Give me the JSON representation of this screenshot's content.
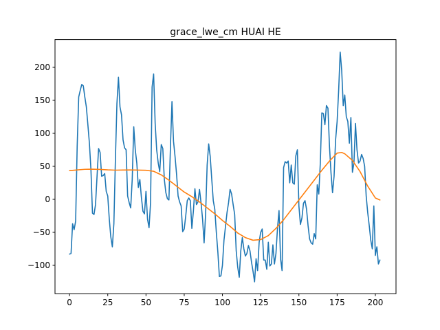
{
  "chart_data": {
    "type": "line",
    "title": "grace_lwe_cm HUAI HE",
    "xlabel": "",
    "ylabel": "",
    "xlim": [
      -9.5,
      213.5
    ],
    "ylim": [
      -143,
      242
    ],
    "x_ticks": [
      0,
      25,
      50,
      75,
      100,
      125,
      150,
      175,
      200
    ],
    "y_ticks": [
      -100,
      -50,
      0,
      50,
      100,
      150,
      200
    ],
    "grid": false,
    "legend": "none",
    "colors": {
      "series_0": "#1f77b4",
      "series_1": "#ff7f0e"
    },
    "series": [
      {
        "points": [
          [
            0,
            -83
          ],
          [
            1,
            -82
          ],
          [
            2,
            -37
          ],
          [
            3,
            -46
          ],
          [
            4,
            -33
          ],
          [
            5,
            80
          ],
          [
            6,
            155
          ],
          [
            7,
            165
          ],
          [
            8,
            174
          ],
          [
            9,
            172
          ],
          [
            10,
            155
          ],
          [
            11,
            140
          ],
          [
            12,
            113
          ],
          [
            13,
            85
          ],
          [
            14,
            45
          ],
          [
            15,
            -21
          ],
          [
            16,
            -23
          ],
          [
            17,
            -8
          ],
          [
            18,
            35
          ],
          [
            19,
            77
          ],
          [
            20,
            71
          ],
          [
            21,
            35
          ],
          [
            22,
            36
          ],
          [
            23,
            39
          ],
          [
            24,
            12
          ],
          [
            25,
            5
          ],
          [
            26,
            -30
          ],
          [
            27,
            -57
          ],
          [
            28,
            -72
          ],
          [
            29,
            -37
          ],
          [
            30,
            60
          ],
          [
            31,
            145
          ],
          [
            32,
            185
          ],
          [
            33,
            140
          ],
          [
            34,
            128
          ],
          [
            35,
            90
          ],
          [
            36,
            78
          ],
          [
            37,
            75
          ],
          [
            38,
            5
          ],
          [
            39,
            -5
          ],
          [
            40,
            -13
          ],
          [
            41,
            30
          ],
          [
            42,
            110
          ],
          [
            43,
            75
          ],
          [
            44,
            55
          ],
          [
            45,
            18
          ],
          [
            46,
            30
          ],
          [
            47,
            3
          ],
          [
            48,
            -18
          ],
          [
            49,
            -22
          ],
          [
            50,
            12
          ],
          [
            51,
            -30
          ],
          [
            52,
            -43
          ],
          [
            53,
            -5
          ],
          [
            54,
            170
          ],
          [
            55,
            190
          ],
          [
            56,
            115
          ],
          [
            57,
            75
          ],
          [
            58,
            55
          ],
          [
            59,
            42
          ],
          [
            60,
            83
          ],
          [
            61,
            77
          ],
          [
            62,
            30
          ],
          [
            63,
            10
          ],
          [
            64,
            1
          ],
          [
            65,
            -1
          ],
          [
            66,
            80
          ],
          [
            67,
            148
          ],
          [
            68,
            88
          ],
          [
            69,
            65
          ],
          [
            70,
            38
          ],
          [
            71,
            5
          ],
          [
            72,
            -4
          ],
          [
            73,
            -10
          ],
          [
            74,
            -49
          ],
          [
            75,
            -45
          ],
          [
            76,
            -25
          ],
          [
            77,
            -2
          ],
          [
            78,
            2
          ],
          [
            79,
            -2
          ],
          [
            80,
            -44
          ],
          [
            81,
            -18
          ],
          [
            82,
            16
          ],
          [
            83,
            -8
          ],
          [
            84,
            -4
          ],
          [
            85,
            15
          ],
          [
            86,
            -5
          ],
          [
            87,
            -30
          ],
          [
            88,
            -66
          ],
          [
            89,
            -22
          ],
          [
            90,
            52
          ],
          [
            91,
            84
          ],
          [
            92,
            65
          ],
          [
            93,
            31
          ],
          [
            94,
            -2
          ],
          [
            95,
            -15
          ],
          [
            96,
            -50
          ],
          [
            97,
            -80
          ],
          [
            98,
            -117
          ],
          [
            99,
            -116
          ],
          [
            100,
            -100
          ],
          [
            101,
            -62
          ],
          [
            102,
            -41
          ],
          [
            103,
            -20
          ],
          [
            104,
            -5
          ],
          [
            105,
            15
          ],
          [
            106,
            8
          ],
          [
            107,
            -8
          ],
          [
            108,
            -23
          ],
          [
            109,
            -78
          ],
          [
            110,
            -103
          ],
          [
            111,
            -118
          ],
          [
            112,
            -78
          ],
          [
            113,
            -58
          ],
          [
            114,
            -75
          ],
          [
            115,
            -86
          ],
          [
            116,
            -82
          ],
          [
            117,
            -70
          ],
          [
            118,
            -78
          ],
          [
            119,
            -95
          ],
          [
            120,
            -109
          ],
          [
            121,
            -125
          ],
          [
            122,
            -90
          ],
          [
            123,
            -108
          ],
          [
            124,
            -65
          ],
          [
            125,
            -50
          ],
          [
            126,
            -45
          ],
          [
            127,
            -92
          ],
          [
            128,
            -92
          ],
          [
            129,
            -106
          ],
          [
            130,
            -65
          ],
          [
            131,
            -101
          ],
          [
            132,
            -98
          ],
          [
            133,
            -69
          ],
          [
            134,
            -98
          ],
          [
            135,
            -82
          ],
          [
            136,
            -44
          ],
          [
            137,
            -17
          ],
          [
            138,
            -90
          ],
          [
            139,
            -108
          ],
          [
            140,
            48
          ],
          [
            141,
            57
          ],
          [
            142,
            55
          ],
          [
            143,
            58
          ],
          [
            144,
            25
          ],
          [
            145,
            52
          ],
          [
            146,
            25
          ],
          [
            147,
            23
          ],
          [
            148,
            66
          ],
          [
            149,
            75
          ],
          [
            150,
            -10
          ],
          [
            151,
            -38
          ],
          [
            152,
            -28
          ],
          [
            153,
            -6
          ],
          [
            154,
            -2
          ],
          [
            155,
            -15
          ],
          [
            156,
            -40
          ],
          [
            157,
            -60
          ],
          [
            158,
            -66
          ],
          [
            159,
            -68
          ],
          [
            160,
            -52
          ],
          [
            161,
            -60
          ],
          [
            162,
            22
          ],
          [
            163,
            8
          ],
          [
            164,
            55
          ],
          [
            165,
            131
          ],
          [
            166,
            130
          ],
          [
            167,
            113
          ],
          [
            168,
            142
          ],
          [
            169,
            138
          ],
          [
            170,
            80
          ],
          [
            171,
            40
          ],
          [
            172,
            10
          ],
          [
            173,
            35
          ],
          [
            174,
            90
          ],
          [
            175,
            118
          ],
          [
            176,
            165
          ],
          [
            177,
            223
          ],
          [
            178,
            195
          ],
          [
            179,
            142
          ],
          [
            180,
            158
          ],
          [
            181,
            125
          ],
          [
            182,
            118
          ],
          [
            183,
            85
          ],
          [
            184,
            124
          ],
          [
            185,
            41
          ],
          [
            186,
            55
          ],
          [
            187,
            115
          ],
          [
            188,
            75
          ],
          [
            189,
            55
          ],
          [
            190,
            58
          ],
          [
            191,
            68
          ],
          [
            192,
            62
          ],
          [
            193,
            50
          ],
          [
            194,
            5
          ],
          [
            195,
            -20
          ],
          [
            196,
            -40
          ],
          [
            197,
            -62
          ],
          [
            198,
            -75
          ],
          [
            199,
            -10
          ],
          [
            200,
            -85
          ],
          [
            201,
            -72
          ],
          [
            202,
            -98
          ],
          [
            203,
            -92
          ]
        ]
      },
      {
        "points": [
          [
            0,
            43.5
          ],
          [
            5,
            44.5
          ],
          [
            10,
            45.5
          ],
          [
            15,
            45.7
          ],
          [
            20,
            45.3
          ],
          [
            25,
            44.6
          ],
          [
            30,
            44.2
          ],
          [
            35,
            44.4
          ],
          [
            40,
            44.5
          ],
          [
            45,
            44.3
          ],
          [
            50,
            44.0
          ],
          [
            55,
            42.5
          ],
          [
            60,
            37
          ],
          [
            65,
            29
          ],
          [
            70,
            20
          ],
          [
            75,
            11
          ],
          [
            80,
            4
          ],
          [
            85,
            -4
          ],
          [
            90,
            -13
          ],
          [
            95,
            -22
          ],
          [
            100,
            -32
          ],
          [
            105,
            -41
          ],
          [
            110,
            -51
          ],
          [
            115,
            -58
          ],
          [
            120,
            -62
          ],
          [
            125,
            -61
          ],
          [
            130,
            -55
          ],
          [
            135,
            -44
          ],
          [
            140,
            -31
          ],
          [
            145,
            -16
          ],
          [
            150,
            -1
          ],
          [
            155,
            14
          ],
          [
            160,
            29
          ],
          [
            165,
            44
          ],
          [
            170,
            58
          ],
          [
            175,
            70
          ],
          [
            178,
            71
          ],
          [
            180,
            69
          ],
          [
            185,
            59
          ],
          [
            190,
            42
          ],
          [
            195,
            20
          ],
          [
            200,
            2
          ],
          [
            203,
            -1
          ]
        ]
      }
    ]
  }
}
